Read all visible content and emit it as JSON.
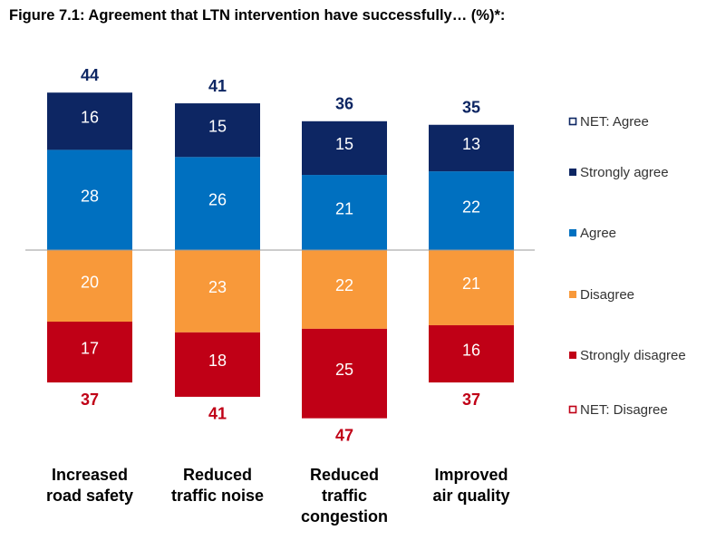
{
  "title": "Figure 7.1: Agreement that LTN intervention have successfully…  (%)*:",
  "chart_data": {
    "type": "bar",
    "stacked": "diverging",
    "categories": [
      [
        "Increased",
        "road safety"
      ],
      [
        "Reduced",
        "traffic noise"
      ],
      [
        "Reduced",
        "traffic",
        "congestion"
      ],
      [
        "Improved",
        "air quality"
      ]
    ],
    "series": [
      {
        "name": "Strongly agree",
        "values": [
          16,
          15,
          15,
          13
        ],
        "color": "#0d2663",
        "side": "positive"
      },
      {
        "name": "Agree",
        "values": [
          28,
          26,
          21,
          22
        ],
        "color": "#0070c0",
        "side": "positive"
      },
      {
        "name": "Disagree",
        "values": [
          20,
          23,
          22,
          21
        ],
        "color": "#f8993a",
        "side": "negative"
      },
      {
        "name": "Strongly disagree",
        "values": [
          17,
          18,
          25,
          16
        ],
        "color": "#c00016",
        "side": "negative"
      }
    ],
    "net": [
      {
        "name": "NET: Agree",
        "values": [
          44,
          41,
          36,
          35
        ],
        "color": "#0d2663"
      },
      {
        "name": "NET: Disagree",
        "values": [
          37,
          41,
          47,
          37
        ],
        "color": "#c00016"
      }
    ],
    "legend": {
      "position": "right",
      "entries": [
        {
          "name": "NET: Agree",
          "color": "#0d2663",
          "hollow": true
        },
        {
          "name": "Strongly agree",
          "color": "#0d2663",
          "hollow": false
        },
        {
          "name": "Agree",
          "color": "#0070c0",
          "hollow": false
        },
        {
          "name": "Disagree",
          "color": "#f8993a",
          "hollow": false
        },
        {
          "name": "Strongly disagree",
          "color": "#c00016",
          "hollow": false
        },
        {
          "name": "NET: Disagree",
          "color": "#c00016",
          "hollow": true
        }
      ]
    },
    "grid": false,
    "xlabel": "",
    "ylabel": ""
  }
}
